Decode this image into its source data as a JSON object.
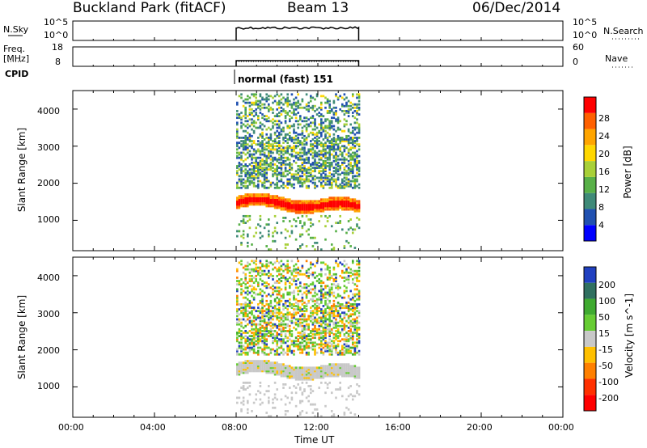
{
  "header": {
    "station": "Buckland Park (fitACF)",
    "beam": "Beam 13",
    "date": "06/Dec/2014"
  },
  "left_labels": {
    "nsky": "N.Sky",
    "freq": "Freq.",
    "freq_unit": "[MHz]",
    "cpid": "CPID"
  },
  "right_labels": {
    "nsearch": "N.Search",
    "nave": "Nave"
  },
  "scales": {
    "noise_left_top": "10^5",
    "noise_left_bottom": "10^0",
    "noise_right_top": "10^5",
    "noise_right_bottom": "10^0",
    "freq_top": "18",
    "freq_bottom": "8",
    "nave_top": "60",
    "nave_bottom": "0"
  },
  "cpid_text": "normal (fast) 151",
  "chart_data": [
    {
      "type": "heatmap",
      "panel": "power",
      "ylabel": "Slant Range [km]",
      "yticks": [
        "1000",
        "2000",
        "3000",
        "4000"
      ],
      "ylim": [
        180,
        4500
      ],
      "xlim": [
        "00:00",
        "24:00"
      ],
      "data_time_range": [
        "08:00",
        "14:00"
      ],
      "colorbar_label": "Power [dB]",
      "colorbar_ticks": [
        "4",
        "8",
        "12",
        "16",
        "20",
        "24",
        "28"
      ],
      "colorbar_colors": [
        "#0000ff",
        "#2050b0",
        "#3f8a78",
        "#58b048",
        "#a8d038",
        "#ffd700",
        "#ffa500",
        "#ff6000",
        "#ff0000"
      ],
      "features": [
        {
          "name": "strong ground-scatter band",
          "range_km": [
            1100,
            1700
          ],
          "power_db": [
            24,
            32
          ]
        },
        {
          "name": "diffuse scatter",
          "range_km": [
            1800,
            4400
          ],
          "power_db": [
            8,
            20
          ]
        }
      ]
    },
    {
      "type": "heatmap",
      "panel": "velocity",
      "ylabel": "Slant Range [km]",
      "yticks": [
        "1000",
        "2000",
        "3000",
        "4000"
      ],
      "ylim": [
        180,
        4500
      ],
      "xlim": [
        "00:00",
        "24:00"
      ],
      "data_time_range": [
        "08:00",
        "14:00"
      ],
      "colorbar_label": "Velocity [m s^-1]",
      "colorbar_ticks": [
        "200",
        "100",
        "50",
        "15",
        "-15",
        "-50",
        "-100",
        "-200"
      ],
      "colorbar_colors": [
        "#2040c0",
        "#307060",
        "#3faa30",
        "#66cc33",
        "#c8c8c8",
        "#ffc000",
        "#ff8000",
        "#ff3000",
        "#ff0000"
      ],
      "features": [
        {
          "name": "ground scatter (grey)",
          "range_km": [
            1200,
            1800
          ]
        },
        {
          "name": "ionospheric scatter (green/orange)",
          "range_km": [
            1800,
            4400
          ]
        }
      ]
    }
  ],
  "xaxis": {
    "ticks": [
      "00:00",
      "04:00",
      "08:00",
      "12:00",
      "16:00",
      "20:00",
      "00:00"
    ],
    "label": "Time UT"
  }
}
